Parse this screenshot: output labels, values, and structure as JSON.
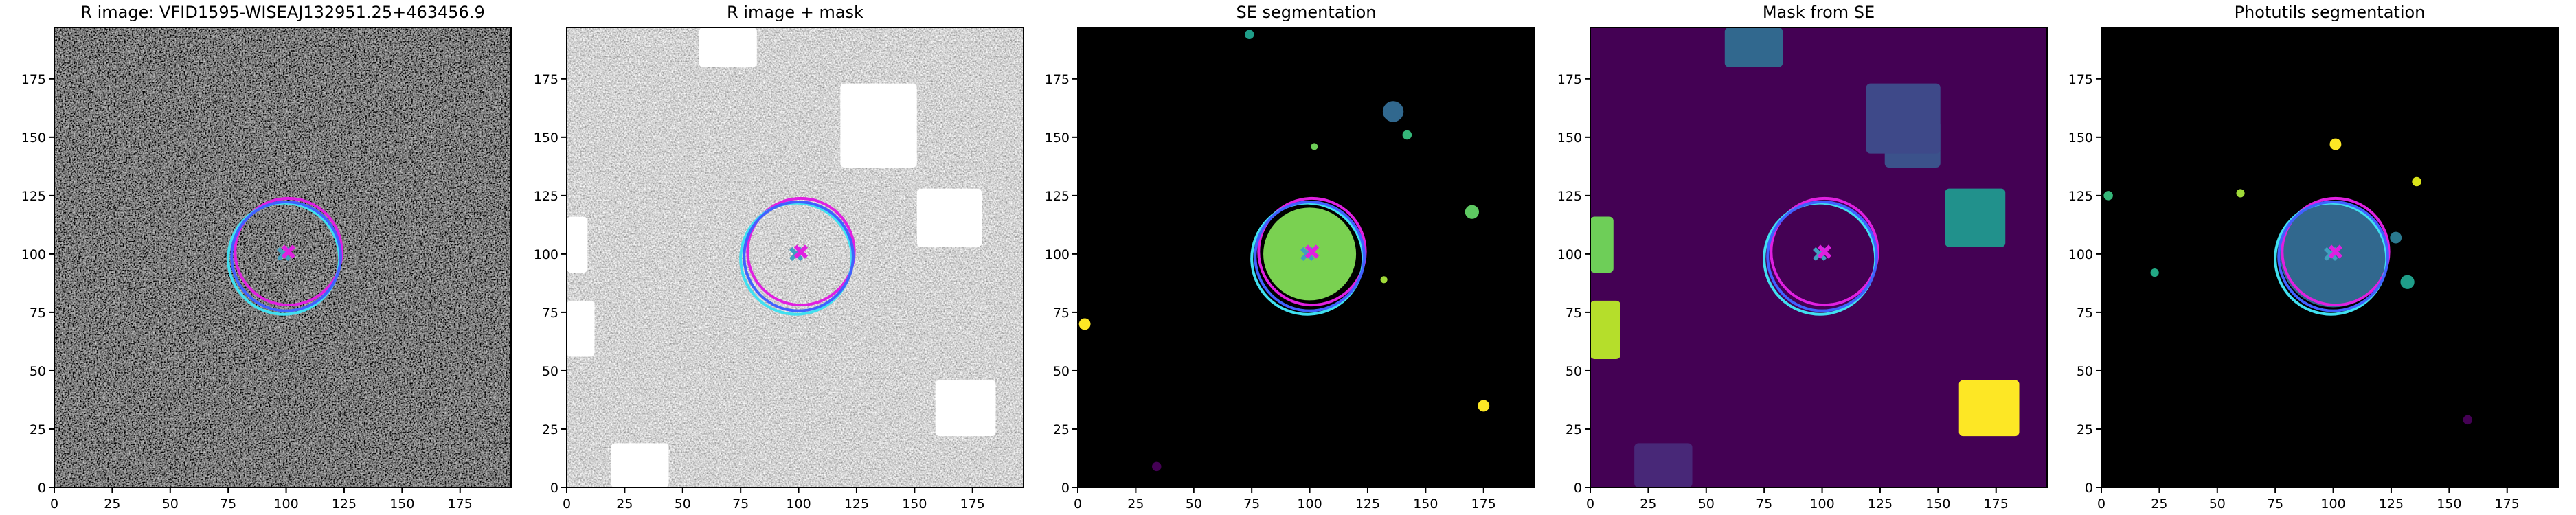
{
  "chart_data": [
    {
      "type": "image",
      "title": "R image: VFID1595-WISEAJ132951.25+463456.9",
      "background": "#303030",
      "noise": "dark",
      "xlim": [
        0,
        197
      ],
      "ylim": [
        0,
        197
      ],
      "xticks": [
        0,
        25,
        50,
        75,
        100,
        125,
        150,
        175
      ],
      "yticks": [
        0,
        25,
        50,
        75,
        100,
        125,
        150,
        175
      ],
      "regions": [],
      "blobs": [],
      "apertures": [
        {
          "x": 101,
          "y": 101,
          "r": 23,
          "color": "#e020e0"
        },
        {
          "x": 99,
          "y": 98,
          "r": 24,
          "color": "#40e0f0"
        },
        {
          "x": 100,
          "y": 99,
          "r": 23.5,
          "color": "#4060ff"
        }
      ],
      "centers": [
        {
          "x": 99,
          "y": 100,
          "color": "#40a0c0"
        },
        {
          "x": 101,
          "y": 101,
          "color": "#e020e0"
        }
      ]
    },
    {
      "type": "image",
      "title": "R image + mask",
      "background": "#b0b0b0",
      "noise": "light",
      "xlim": [
        0,
        197
      ],
      "ylim": [
        0,
        197
      ],
      "xticks": [
        0,
        25,
        50,
        75,
        100,
        125,
        150,
        175
      ],
      "yticks": [
        0,
        25,
        50,
        75,
        100,
        125,
        150,
        175
      ],
      "regions": [
        {
          "x0": 57,
          "x1": 82,
          "y0": 180,
          "y1": 197,
          "color": "#ffffff"
        },
        {
          "x0": 118,
          "x1": 151,
          "y0": 137,
          "y1": 173,
          "color": "#ffffff"
        },
        {
          "x0": 151,
          "x1": 179,
          "y0": 103,
          "y1": 128,
          "color": "#ffffff"
        },
        {
          "x0": 159,
          "x1": 185,
          "y0": 22,
          "y1": 46,
          "color": "#ffffff"
        },
        {
          "x0": 19,
          "x1": 44,
          "y0": 0,
          "y1": 19,
          "color": "#ffffff"
        },
        {
          "x0": 0,
          "x1": 9,
          "y0": 92,
          "y1": 116,
          "color": "#ffffff"
        },
        {
          "x0": 0,
          "x1": 12,
          "y0": 56,
          "y1": 80,
          "color": "#ffffff"
        }
      ],
      "blobs": [],
      "apertures": [
        {
          "x": 101,
          "y": 101,
          "r": 23,
          "color": "#e020e0"
        },
        {
          "x": 99,
          "y": 98,
          "r": 24,
          "color": "#40e0f0"
        },
        {
          "x": 100,
          "y": 99,
          "r": 23.5,
          "color": "#4060ff"
        }
      ],
      "centers": [
        {
          "x": 99,
          "y": 100,
          "color": "#40a0c0"
        },
        {
          "x": 101,
          "y": 101,
          "color": "#e020e0"
        }
      ]
    },
    {
      "type": "image",
      "title": "SE segmentation",
      "background": "#000000",
      "xlim": [
        0,
        197
      ],
      "ylim": [
        0,
        197
      ],
      "xticks": [
        0,
        25,
        50,
        75,
        100,
        125,
        150,
        175
      ],
      "yticks": [
        0,
        25,
        50,
        75,
        100,
        125,
        150,
        175
      ],
      "regions": [],
      "blobs": [
        {
          "x": 100,
          "y": 100,
          "r": 20,
          "color": "#7ad151"
        },
        {
          "x": 136,
          "y": 161,
          "r": 4.5,
          "color": "#31688e"
        },
        {
          "x": 74,
          "y": 194,
          "r": 2,
          "color": "#1f9e89"
        },
        {
          "x": 170,
          "y": 118,
          "r": 3,
          "color": "#5ec962"
        },
        {
          "x": 175,
          "y": 35,
          "r": 2.5,
          "color": "#fde725"
        },
        {
          "x": 3,
          "y": 70,
          "r": 2.5,
          "color": "#fde725"
        },
        {
          "x": 142,
          "y": 151,
          "r": 2,
          "color": "#35b779"
        },
        {
          "x": 34,
          "y": 9,
          "r": 2,
          "color": "#440154"
        },
        {
          "x": 102,
          "y": 146,
          "r": 1.5,
          "color": "#6ece58"
        },
        {
          "x": 132,
          "y": 89,
          "r": 1.5,
          "color": "#a0da39"
        }
      ],
      "apertures": [
        {
          "x": 101,
          "y": 101,
          "r": 23,
          "color": "#e020e0"
        },
        {
          "x": 99,
          "y": 98,
          "r": 24,
          "color": "#40e0f0"
        },
        {
          "x": 100,
          "y": 99,
          "r": 23.5,
          "color": "#4060ff"
        }
      ],
      "centers": [
        {
          "x": 99,
          "y": 100,
          "color": "#40a0c0"
        },
        {
          "x": 101,
          "y": 101,
          "color": "#e020e0"
        }
      ]
    },
    {
      "type": "image",
      "title": "Mask from SE",
      "background": "#440154",
      "xlim": [
        0,
        197
      ],
      "ylim": [
        0,
        197
      ],
      "xticks": [
        0,
        25,
        50,
        75,
        100,
        125,
        150,
        175
      ],
      "yticks": [
        0,
        25,
        50,
        75,
        100,
        125,
        150,
        175
      ],
      "regions": [
        {
          "x0": 58,
          "x1": 83,
          "y0": 180,
          "y1": 197,
          "color": "#31688e"
        },
        {
          "x0": 127,
          "x1": 151,
          "y0": 137,
          "y1": 157,
          "color": "#3b528b"
        },
        {
          "x0": 119,
          "x1": 151,
          "y0": 143,
          "y1": 173,
          "color": "#3e4989"
        },
        {
          "x0": 153,
          "x1": 179,
          "y0": 103,
          "y1": 128,
          "color": "#21918c"
        },
        {
          "x0": 159,
          "x1": 185,
          "y0": 22,
          "y1": 46,
          "color": "#fde725"
        },
        {
          "x0": 0,
          "x1": 10,
          "y0": 92,
          "y1": 116,
          "color": "#6ece58"
        },
        {
          "x0": 0,
          "x1": 13,
          "y0": 55,
          "y1": 80,
          "color": "#b5de2b"
        },
        {
          "x0": 19,
          "x1": 44,
          "y0": 0,
          "y1": 19,
          "color": "#482878"
        }
      ],
      "blobs": [],
      "apertures": [
        {
          "x": 101,
          "y": 101,
          "r": 23,
          "color": "#e020e0"
        },
        {
          "x": 99,
          "y": 98,
          "r": 24,
          "color": "#40e0f0"
        },
        {
          "x": 100,
          "y": 99,
          "r": 23.5,
          "color": "#4060ff"
        }
      ],
      "centers": [
        {
          "x": 99,
          "y": 100,
          "color": "#40a0c0"
        },
        {
          "x": 101,
          "y": 101,
          "color": "#e020e0"
        }
      ]
    },
    {
      "type": "image",
      "title": "Photutils segmentation",
      "background": "#000000",
      "xlim": [
        0,
        197
      ],
      "ylim": [
        0,
        197
      ],
      "xticks": [
        0,
        25,
        50,
        75,
        100,
        125,
        150,
        175
      ],
      "yticks": [
        0,
        25,
        50,
        75,
        100,
        125,
        150,
        175
      ],
      "regions": [],
      "blobs": [
        {
          "x": 100,
          "y": 100,
          "r": 23,
          "color": "#31688e"
        },
        {
          "x": 101,
          "y": 147,
          "r": 2.5,
          "color": "#fde725"
        },
        {
          "x": 3,
          "y": 125,
          "r": 2,
          "color": "#35b779"
        },
        {
          "x": 60,
          "y": 126,
          "r": 1.8,
          "color": "#a0da39"
        },
        {
          "x": 136,
          "y": 131,
          "r": 2,
          "color": "#d8e219"
        },
        {
          "x": 23,
          "y": 92,
          "r": 1.8,
          "color": "#22a884"
        },
        {
          "x": 132,
          "y": 88,
          "r": 3,
          "color": "#1f9e89"
        },
        {
          "x": 127,
          "y": 107,
          "r": 2.5,
          "color": "#2a788e"
        },
        {
          "x": 158,
          "y": 29,
          "r": 2,
          "color": "#440154"
        }
      ],
      "apertures": [
        {
          "x": 101,
          "y": 101,
          "r": 23,
          "color": "#e020e0"
        },
        {
          "x": 99,
          "y": 98,
          "r": 24,
          "color": "#40e0f0"
        },
        {
          "x": 100,
          "y": 99,
          "r": 23.5,
          "color": "#4060ff"
        }
      ],
      "centers": [
        {
          "x": 99,
          "y": 100,
          "color": "#40a0c0"
        },
        {
          "x": 101,
          "y": 101,
          "color": "#e020e0"
        }
      ]
    }
  ]
}
